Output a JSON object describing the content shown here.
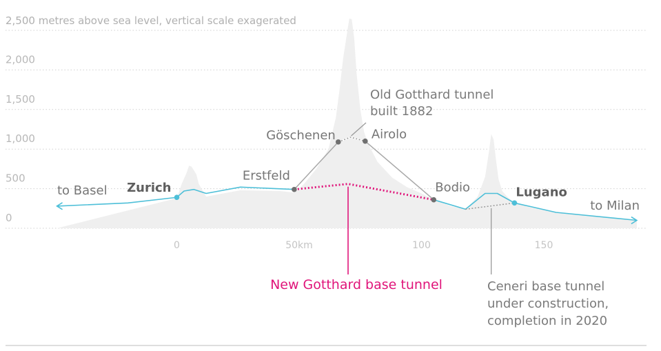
{
  "chart_data": {
    "type": "area",
    "title": "",
    "ylabel": "2,500 metres above sea level, vertical scale exagerated",
    "xlabel": "",
    "ylim": [
      0,
      2500
    ],
    "xlim": [
      -50,
      190
    ],
    "y_ticks": [
      {
        "value": 0,
        "label": "0"
      },
      {
        "value": 500,
        "label": "500"
      },
      {
        "value": 1000,
        "label": "1,000"
      },
      {
        "value": 1500,
        "label": "1,500"
      },
      {
        "value": 2000,
        "label": "2,000"
      }
    ],
    "x_ticks": [
      {
        "value": 0,
        "label": "0"
      },
      {
        "value": 50,
        "label": "50km"
      },
      {
        "value": 100,
        "label": "100"
      },
      {
        "value": 150,
        "label": "150"
      }
    ],
    "terrain": {
      "x": [
        -49,
        0,
        2,
        4,
        5,
        6,
        8,
        9,
        12,
        26,
        42,
        48,
        52,
        57,
        62,
        65,
        66.5,
        68,
        69.5,
        70.5,
        71.5,
        72.5,
        73.5,
        75,
        76.5,
        78,
        82,
        88,
        94,
        100,
        105,
        112,
        118,
        123,
        126,
        127.5,
        128.5,
        129.5,
        130.5,
        131.5,
        133,
        135,
        138,
        145,
        155,
        170,
        188
      ],
      "y": [
        0,
        380,
        560,
        700,
        790,
        780,
        680,
        560,
        400,
        480,
        470,
        450,
        560,
        750,
        1000,
        1400,
        1750,
        2150,
        2450,
        2650,
        2640,
        2400,
        1950,
        1500,
        1220,
        1080,
        840,
        640,
        520,
        440,
        360,
        280,
        240,
        400,
        650,
        950,
        1190,
        1120,
        850,
        620,
        470,
        400,
        320,
        260,
        200,
        150,
        100
      ]
    },
    "series": [
      {
        "name": "to Basel",
        "x": [
          -49,
          -20,
          0,
          3,
          7,
          12,
          26,
          48
        ],
        "y": [
          280,
          320,
          390,
          470,
          490,
          440,
          520,
          490
        ]
      },
      {
        "name": "New Gotthard base tunnel",
        "x": [
          48,
          70,
          105
        ],
        "y": [
          490,
          560,
          360
        ]
      },
      {
        "name": "Old Gotthard tunnel",
        "x": [
          48,
          66,
          71,
          77,
          105
        ],
        "y": [
          490,
          1090,
          1150,
          1100,
          360
        ]
      },
      {
        "name": "to Milan",
        "x": [
          105,
          118,
          126,
          131,
          138,
          155,
          188
        ],
        "y": [
          360,
          240,
          440,
          440,
          320,
          200,
          100
        ]
      },
      {
        "name": "Ceneri base tunnel",
        "x": [
          118,
          138
        ],
        "y": [
          240,
          320
        ]
      }
    ],
    "stations": [
      {
        "name": "Zurich",
        "x": 0,
        "y": 390,
        "bold": true
      },
      {
        "name": "Erstfeld",
        "x": 48,
        "y": 490,
        "bold": false
      },
      {
        "name": "Göschenen",
        "x": 66,
        "y": 1090,
        "bold": false
      },
      {
        "name": "Airolo",
        "x": 77,
        "y": 1100,
        "bold": false
      },
      {
        "name": "Bodio",
        "x": 105,
        "y": 360,
        "bold": false
      },
      {
        "name": "Lugano",
        "x": 138,
        "y": 320,
        "bold": true
      }
    ],
    "labels": {
      "to_basel": "to Basel",
      "to_milan": "to Milan"
    },
    "annotations": {
      "old_tunnel": [
        "Old Gotthard tunnel",
        "built 1882"
      ],
      "new_tunnel": "New Gotthard base tunnel",
      "ceneri": [
        "Ceneri base tunnel",
        "under construction,",
        "completion in 2020"
      ]
    },
    "colors": {
      "terrain": "#efefef",
      "route": "#4dbfd8",
      "new_tunnel": "#e0147a",
      "old_tunnel": "#a8a8a8",
      "grid": "#cfcfcf",
      "station_grey": "#6f6f6f",
      "station_blue": "#4dbfd8"
    },
    "grid": true
  }
}
